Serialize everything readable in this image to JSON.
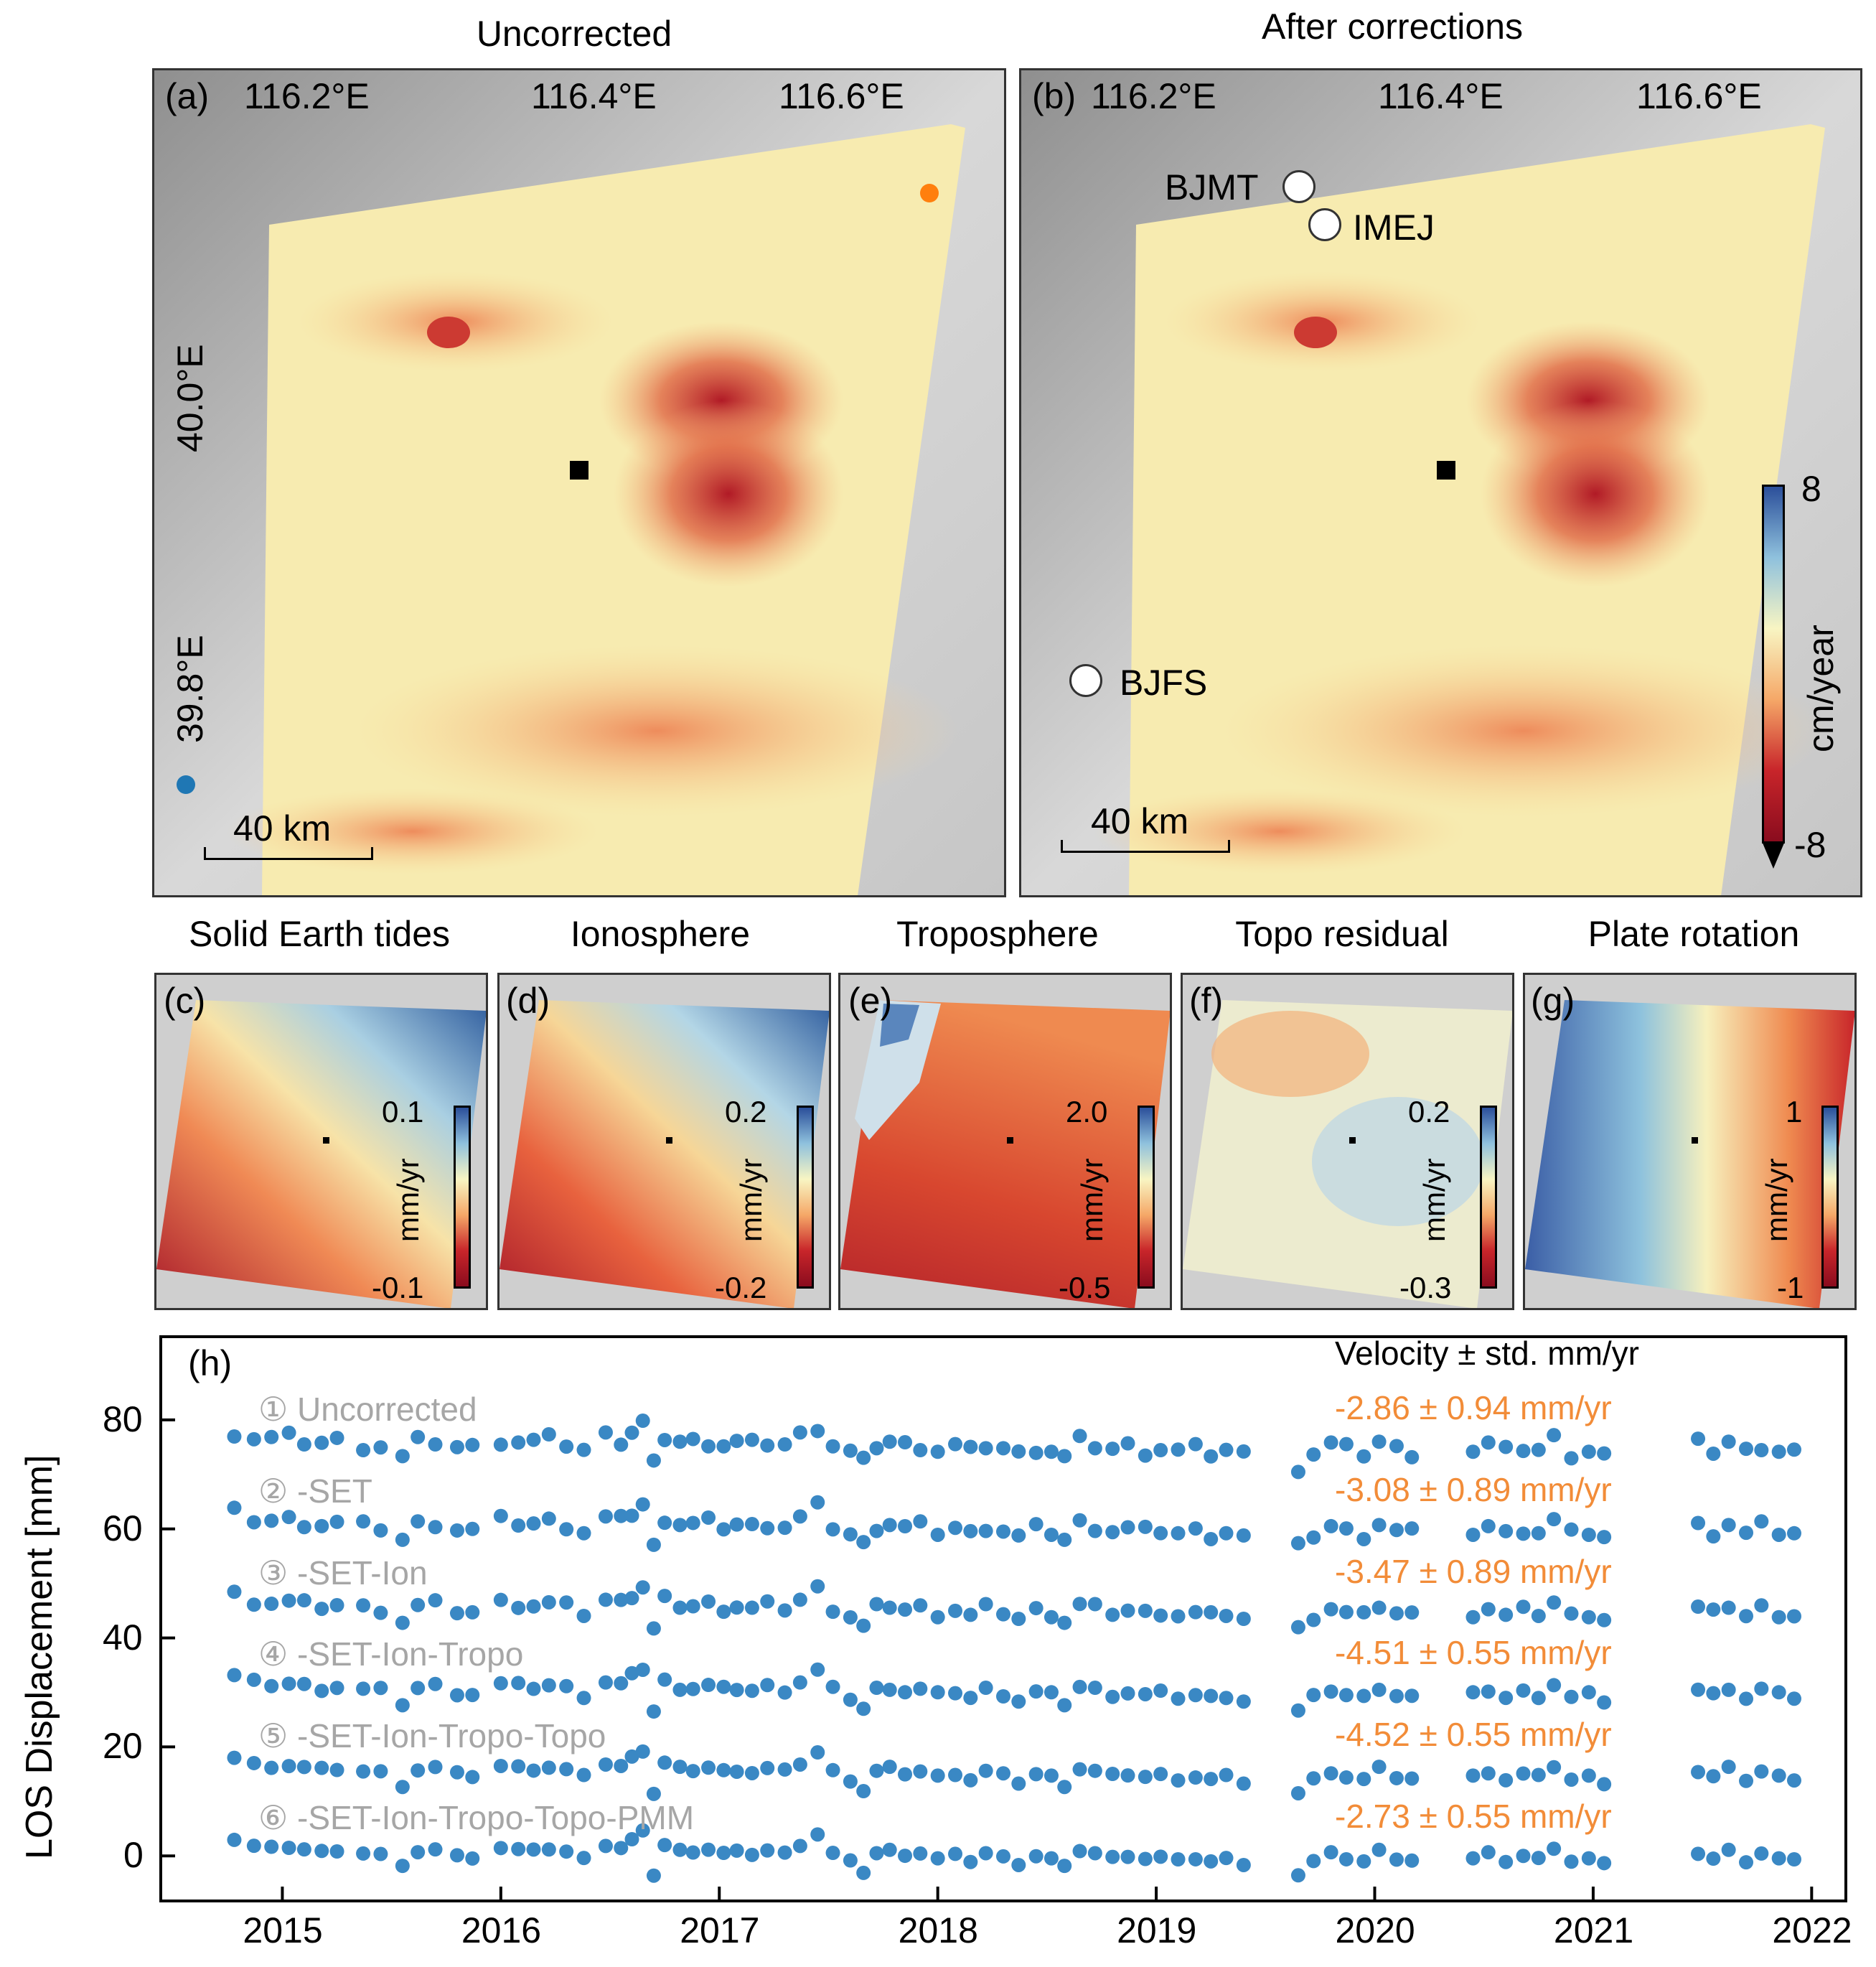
{
  "titles": {
    "a": "Uncorrected",
    "b": "After corrections",
    "c": "Solid Earth tides",
    "d": "Ionosphere",
    "e": "Troposphere",
    "f": "Topo residual",
    "g": "Plate rotation"
  },
  "panel_labels": {
    "a": "(a)",
    "b": "(b)",
    "c": "(c)",
    "d": "(d)",
    "e": "(e)",
    "f": "(f)",
    "g": "(g)",
    "h": "(h)"
  },
  "lon_ticks": [
    "116.2°E",
    "116.4°E",
    "116.6°E"
  ],
  "lat_ticks": [
    "40.0°E",
    "39.8°E"
  ],
  "scale_bar": "40 km",
  "stations": [
    "BJMT",
    "IMEJ",
    "BJFS"
  ],
  "colorbar_main": {
    "unit": "cm/year",
    "max": "8",
    "min": "-8"
  },
  "small_colorbars": [
    {
      "panel": "c",
      "unit": "mm/yr",
      "max": "0.1",
      "min": "-0.1"
    },
    {
      "panel": "d",
      "unit": "mm/yr",
      "max": "0.2",
      "min": "-0.2"
    },
    {
      "panel": "e",
      "unit": "mm/yr",
      "max": "2.0",
      "min": "-0.5"
    },
    {
      "panel": "f",
      "unit": "mm/yr",
      "max": "0.2",
      "min": "-0.3"
    },
    {
      "panel": "g",
      "unit": "mm/yr",
      "max": "1",
      "min": "-1"
    }
  ],
  "colors": {
    "series": "#3a88c4",
    "velocity": "#f28c38",
    "correction_label": "#a6a6a6",
    "blue_point": "#1f77b4",
    "orange_point": "#ff7f0e"
  },
  "chart_data": {
    "type": "scatter",
    "title": "",
    "xlabel": "",
    "ylabel": "LOS Displacement [mm]",
    "xlim": [
      2014.45,
      2022.15
    ],
    "ylim": [
      -8,
      95
    ],
    "xticks": [
      "2015",
      "2016",
      "2017",
      "2018",
      "2019",
      "2020",
      "2021",
      "2022"
    ],
    "yticks": [
      "0",
      "20",
      "40",
      "60",
      "80"
    ],
    "velocity_header": "Velocity ± std. mm/yr",
    "series": [
      {
        "name": "① Uncorrected",
        "offset": 75,
        "velocity": "-2.86 ± 0.94 mm/yr"
      },
      {
        "name": "② -SET",
        "offset": 60,
        "velocity": "-3.08 ± 0.89 mm/yr"
      },
      {
        "name": "③ -SET-Ion",
        "offset": 45,
        "velocity": "-3.47 ± 0.89 mm/yr"
      },
      {
        "name": "④ -SET-Ion-Tropo",
        "offset": 30,
        "velocity": "-4.51 ± 0.55 mm/yr"
      },
      {
        "name": "⑤ -SET-Ion-Tropo-Topo",
        "offset": 15,
        "velocity": "-4.52 ± 0.55 mm/yr"
      },
      {
        "name": "⑥ -SET-Ion-Tropo-Topo-PMM",
        "offset": 0,
        "velocity": "-2.73 ± 0.55 mm/yr"
      }
    ],
    "time_series_residual_mm": [
      {
        "x": 2014.78,
        "y": 3.0
      },
      {
        "x": 2014.87,
        "y": 1.8
      },
      {
        "x": 2014.95,
        "y": 1.5
      },
      {
        "x": 2015.03,
        "y": 1.6
      },
      {
        "x": 2015.1,
        "y": 1.2
      },
      {
        "x": 2015.18,
        "y": 0.8
      },
      {
        "x": 2015.25,
        "y": 1.0
      },
      {
        "x": 2015.37,
        "y": 0.5
      },
      {
        "x": 2015.45,
        "y": 0.3
      },
      {
        "x": 2015.55,
        "y": -2.0
      },
      {
        "x": 2015.62,
        "y": 0.8
      },
      {
        "x": 2015.7,
        "y": 1.2
      },
      {
        "x": 2015.8,
        "y": 0.0
      },
      {
        "x": 2015.87,
        "y": -0.3
      },
      {
        "x": 2016.0,
        "y": 1.5
      },
      {
        "x": 2016.08,
        "y": 1.2
      },
      {
        "x": 2016.15,
        "y": 1.0
      },
      {
        "x": 2016.22,
        "y": 1.3
      },
      {
        "x": 2016.3,
        "y": 0.8
      },
      {
        "x": 2016.38,
        "y": -0.5
      },
      {
        "x": 2016.48,
        "y": 2.0
      },
      {
        "x": 2016.55,
        "y": 1.5
      },
      {
        "x": 2016.6,
        "y": 3.0
      },
      {
        "x": 2016.65,
        "y": 4.5
      },
      {
        "x": 2016.7,
        "y": -3.5
      },
      {
        "x": 2016.75,
        "y": 2.0
      },
      {
        "x": 2016.82,
        "y": 1.0
      },
      {
        "x": 2016.88,
        "y": 0.8
      },
      {
        "x": 2016.95,
        "y": 1.2
      },
      {
        "x": 2017.02,
        "y": 0.5
      },
      {
        "x": 2017.08,
        "y": 0.8
      },
      {
        "x": 2017.15,
        "y": 0.3
      },
      {
        "x": 2017.22,
        "y": 1.0
      },
      {
        "x": 2017.3,
        "y": 0.5
      },
      {
        "x": 2017.37,
        "y": 2.0
      },
      {
        "x": 2017.45,
        "y": 4.0
      },
      {
        "x": 2017.52,
        "y": 0.5
      },
      {
        "x": 2017.6,
        "y": -1.0
      },
      {
        "x": 2017.66,
        "y": -3.0
      },
      {
        "x": 2017.72,
        "y": 0.5
      },
      {
        "x": 2017.78,
        "y": 1.0
      },
      {
        "x": 2017.85,
        "y": 0.2
      },
      {
        "x": 2017.92,
        "y": 0.5
      },
      {
        "x": 2018.0,
        "y": -0.5
      },
      {
        "x": 2018.08,
        "y": 0.2
      },
      {
        "x": 2018.15,
        "y": -1.0
      },
      {
        "x": 2018.22,
        "y": 0.5
      },
      {
        "x": 2018.3,
        "y": -0.2
      },
      {
        "x": 2018.37,
        "y": -1.5
      },
      {
        "x": 2018.45,
        "y": 0.0
      },
      {
        "x": 2018.52,
        "y": -0.5
      },
      {
        "x": 2018.58,
        "y": -2.0
      },
      {
        "x": 2018.65,
        "y": 1.0
      },
      {
        "x": 2018.72,
        "y": 0.5
      },
      {
        "x": 2018.8,
        "y": -0.3
      },
      {
        "x": 2018.87,
        "y": 0.0
      },
      {
        "x": 2018.95,
        "y": -0.5
      },
      {
        "x": 2019.02,
        "y": -0.2
      },
      {
        "x": 2019.1,
        "y": -0.8
      },
      {
        "x": 2019.18,
        "y": -0.5
      },
      {
        "x": 2019.25,
        "y": -1.0
      },
      {
        "x": 2019.32,
        "y": -0.5
      },
      {
        "x": 2019.4,
        "y": -1.5
      },
      {
        "x": 2019.65,
        "y": -3.5
      },
      {
        "x": 2019.72,
        "y": -1.0
      },
      {
        "x": 2019.8,
        "y": 0.5
      },
      {
        "x": 2019.87,
        "y": -0.5
      },
      {
        "x": 2019.95,
        "y": -1.0
      },
      {
        "x": 2020.02,
        "y": 1.0
      },
      {
        "x": 2020.1,
        "y": -0.5
      },
      {
        "x": 2020.17,
        "y": -0.8
      },
      {
        "x": 2020.45,
        "y": -0.5
      },
      {
        "x": 2020.52,
        "y": 0.5
      },
      {
        "x": 2020.6,
        "y": -1.0
      },
      {
        "x": 2020.68,
        "y": 0.0
      },
      {
        "x": 2020.75,
        "y": -0.5
      },
      {
        "x": 2020.82,
        "y": 1.5
      },
      {
        "x": 2020.9,
        "y": -1.0
      },
      {
        "x": 2020.98,
        "y": -0.5
      },
      {
        "x": 2021.05,
        "y": -1.5
      },
      {
        "x": 2021.48,
        "y": 0.5
      },
      {
        "x": 2021.55,
        "y": -0.5
      },
      {
        "x": 2021.62,
        "y": 1.0
      },
      {
        "x": 2021.7,
        "y": -1.0
      },
      {
        "x": 2021.77,
        "y": 0.5
      },
      {
        "x": 2021.85,
        "y": -0.5
      },
      {
        "x": 2021.92,
        "y": -0.8
      }
    ]
  }
}
